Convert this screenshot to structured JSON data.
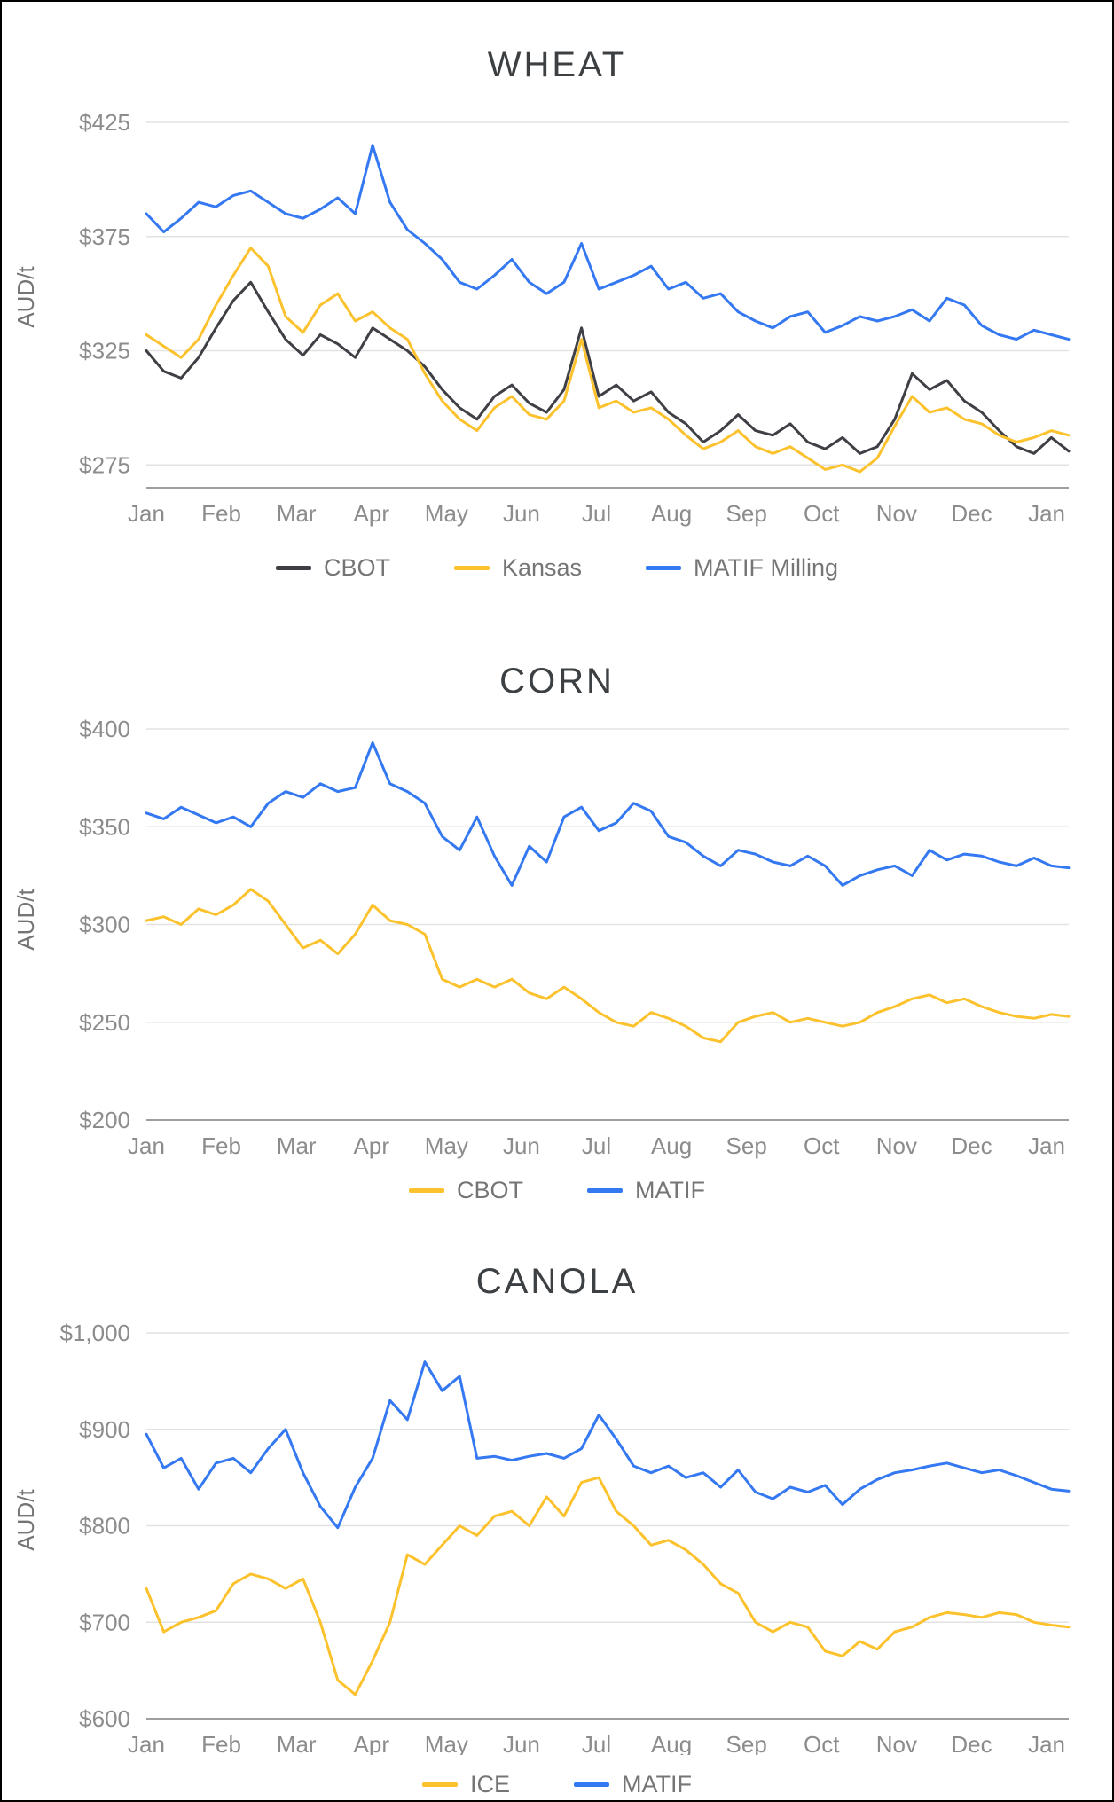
{
  "page": {
    "background": "#ffffff",
    "border_color": "#000000"
  },
  "palette": {
    "grid": "#e2e2e2",
    "axis": "#9e9e9e",
    "tick_text": "#8c8c8c",
    "legend_text": "#757575",
    "title_text": "#3c4043"
  },
  "chart_data": [
    {
      "type": "line",
      "title": "WHEAT",
      "ylabel": "AUD/t",
      "x_ticks": [
        "Jan",
        "Feb",
        "Mar",
        "Apr",
        "May",
        "Jun",
        "Jul",
        "Aug",
        "Sep",
        "Oct",
        "Nov",
        "Dec",
        "Jan"
      ],
      "y_tick_values": [
        275,
        325,
        375,
        425
      ],
      "y_tick_labels": [
        "$275",
        "$325",
        "$375",
        "$425"
      ],
      "ylim": [
        265,
        432
      ],
      "legend_position": "bottom",
      "grid": true,
      "series": [
        {
          "name": "CBOT",
          "color": "#3f4045",
          "values": [
            325,
            316,
            313,
            322,
            335,
            347,
            355,
            342,
            330,
            323,
            332,
            328,
            322,
            335,
            330,
            325,
            318,
            308,
            300,
            295,
            305,
            310,
            302,
            298,
            308,
            335,
            305,
            310,
            303,
            307,
            298,
            293,
            285,
            290,
            297,
            290,
            288,
            293,
            285,
            282,
            287,
            280,
            283,
            295,
            315,
            308,
            312,
            303,
            298,
            290,
            283,
            280,
            287,
            281
          ]
        },
        {
          "name": "Kansas",
          "color": "#fcc22d",
          "values": [
            332,
            327,
            322,
            330,
            345,
            358,
            370,
            362,
            340,
            333,
            345,
            350,
            338,
            342,
            335,
            330,
            315,
            303,
            295,
            290,
            300,
            305,
            297,
            295,
            303,
            330,
            300,
            303,
            298,
            300,
            295,
            288,
            282,
            285,
            290,
            283,
            280,
            283,
            278,
            273,
            275,
            272,
            278,
            292,
            305,
            298,
            300,
            295,
            293,
            288,
            285,
            287,
            290,
            288
          ]
        },
        {
          "name": "MATIF Milling",
          "color": "#3478f2",
          "values": [
            385,
            377,
            383,
            390,
            388,
            393,
            395,
            390,
            385,
            383,
            387,
            392,
            385,
            415,
            390,
            378,
            372,
            365,
            355,
            352,
            358,
            365,
            355,
            350,
            355,
            372,
            352,
            355,
            358,
            362,
            352,
            355,
            348,
            350,
            342,
            338,
            335,
            340,
            342,
            333,
            336,
            340,
            338,
            340,
            343,
            338,
            348,
            345,
            336,
            332,
            330,
            334,
            332,
            330
          ]
        }
      ]
    },
    {
      "type": "line",
      "title": "CORN",
      "ylabel": "AUD/t",
      "x_ticks": [
        "Jan",
        "Feb",
        "Mar",
        "Apr",
        "May",
        "Jun",
        "Jul",
        "Aug",
        "Sep",
        "Oct",
        "Nov",
        "Dec",
        "Jan"
      ],
      "y_tick_values": [
        200,
        250,
        300,
        350,
        400
      ],
      "y_tick_labels": [
        "$200",
        "$250",
        "$300",
        "$350",
        "$400"
      ],
      "ylim": [
        200,
        405
      ],
      "legend_position": "bottom",
      "grid": true,
      "series": [
        {
          "name": "CBOT",
          "color": "#fcc22d",
          "values": [
            302,
            304,
            300,
            308,
            305,
            310,
            318,
            312,
            300,
            288,
            292,
            285,
            295,
            310,
            302,
            300,
            295,
            272,
            268,
            272,
            268,
            272,
            265,
            262,
            268,
            262,
            255,
            250,
            248,
            255,
            252,
            248,
            242,
            240,
            250,
            253,
            255,
            250,
            252,
            250,
            248,
            250,
            255,
            258,
            262,
            264,
            260,
            262,
            258,
            255,
            253,
            252,
            254,
            253
          ]
        },
        {
          "name": "MATIF",
          "color": "#3478f2",
          "values": [
            357,
            354,
            360,
            356,
            352,
            355,
            350,
            362,
            368,
            365,
            372,
            368,
            370,
            393,
            372,
            368,
            362,
            345,
            338,
            355,
            335,
            320,
            340,
            332,
            355,
            360,
            348,
            352,
            362,
            358,
            345,
            342,
            335,
            330,
            338,
            336,
            332,
            330,
            335,
            330,
            320,
            325,
            328,
            330,
            325,
            338,
            333,
            336,
            335,
            332,
            330,
            334,
            330,
            329
          ]
        }
      ]
    },
    {
      "type": "line",
      "title": "CANOLA",
      "ylabel": "AUD/t",
      "x_ticks": [
        "Jan",
        "Feb",
        "Mar",
        "Apr",
        "May",
        "Jun",
        "Jul",
        "Aug",
        "Sep",
        "Oct",
        "Nov",
        "Dec",
        "Jan"
      ],
      "y_tick_values": [
        600,
        700,
        800,
        900,
        1000
      ],
      "y_tick_labels": [
        "$600",
        "$700",
        "$800",
        "$900",
        "$1,000"
      ],
      "ylim": [
        600,
        1012
      ],
      "legend_position": "bottom",
      "grid": true,
      "series": [
        {
          "name": "ICE",
          "color": "#fcc22d",
          "values": [
            735,
            690,
            700,
            705,
            712,
            740,
            750,
            745,
            735,
            745,
            700,
            640,
            625,
            660,
            700,
            770,
            760,
            780,
            800,
            790,
            810,
            815,
            800,
            830,
            810,
            845,
            850,
            815,
            800,
            780,
            785,
            775,
            760,
            740,
            730,
            700,
            690,
            700,
            695,
            670,
            665,
            680,
            672,
            690,
            695,
            705,
            710,
            708,
            705,
            710,
            708,
            700,
            697,
            695
          ]
        },
        {
          "name": "MATIF",
          "color": "#3478f2",
          "values": [
            895,
            860,
            870,
            838,
            865,
            870,
            855,
            880,
            900,
            855,
            820,
            798,
            840,
            870,
            930,
            910,
            970,
            940,
            955,
            870,
            872,
            868,
            872,
            875,
            870,
            880,
            915,
            890,
            862,
            855,
            862,
            850,
            855,
            840,
            858,
            835,
            828,
            840,
            835,
            842,
            822,
            838,
            848,
            855,
            858,
            862,
            865,
            860,
            855,
            858,
            852,
            845,
            838,
            836
          ]
        }
      ]
    }
  ]
}
